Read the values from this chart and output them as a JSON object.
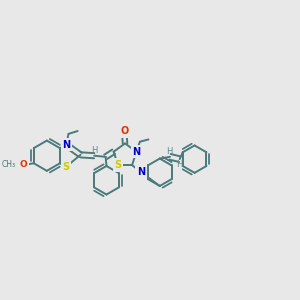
{
  "bg_color": "#e8e8e8",
  "bond_color": "#4a7a7a",
  "bond_width": 1.4,
  "figsize": [
    3.0,
    3.0
  ],
  "dpi": 100,
  "xlim": [
    0.0,
    1.0
  ],
  "ylim": [
    0.25,
    0.85
  ]
}
